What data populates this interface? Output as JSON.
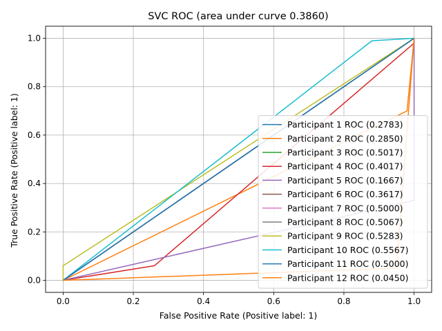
{
  "chart_data": {
    "type": "line",
    "title": "SVC ROC (area under curve 0.3860)",
    "xlabel": "False Positive Rate (Positive label: 1)",
    "ylabel": "True Positive Rate (Positive label: 1)",
    "xlim": [
      -0.05,
      1.05
    ],
    "ylim": [
      -0.05,
      1.05
    ],
    "xticks": [
      "0.0",
      "0.2",
      "0.4",
      "0.6",
      "0.8",
      "1.0"
    ],
    "yticks": [
      "0.0",
      "0.2",
      "0.4",
      "0.6",
      "0.8",
      "1.0"
    ],
    "grid": true,
    "legend_position": "lower-right",
    "series": [
      {
        "name": "Participant 1 ROC (0.2783)",
        "color": "#1f77b4",
        "x": [
          0,
          1,
          1
        ],
        "y": [
          0,
          1,
          1
        ]
      },
      {
        "name": "Participant 2 ROC (0.2850)",
        "color": "#ff7f0e",
        "x": [
          0,
          0.98,
          1,
          1
        ],
        "y": [
          0,
          0.7,
          1,
          1
        ]
      },
      {
        "name": "Participant 3 ROC (0.5017)",
        "color": "#2ca02c",
        "x": [
          0,
          1,
          1
        ],
        "y": [
          0,
          1,
          1
        ]
      },
      {
        "name": "Participant 4 ROC (0.4017)",
        "color": "#d62728",
        "x": [
          0,
          0.26,
          1,
          1
        ],
        "y": [
          0,
          0.06,
          0.98,
          1
        ]
      },
      {
        "name": "Participant 5 ROC (0.1667)",
        "color": "#9467bd",
        "x": [
          0,
          1,
          1
        ],
        "y": [
          0,
          0.33,
          1
        ]
      },
      {
        "name": "Participant 6 ROC (0.3617)",
        "color": "#8c564b",
        "x": [
          0,
          1,
          1
        ],
        "y": [
          0,
          1,
          1
        ]
      },
      {
        "name": "Participant 7 ROC (0.5000)",
        "color": "#e377c2",
        "x": [
          0,
          1,
          1
        ],
        "y": [
          0,
          1,
          1
        ]
      },
      {
        "name": "Participant 8 ROC (0.5067)",
        "color": "#7f7f7f",
        "x": [
          0,
          1,
          1
        ],
        "y": [
          0,
          1,
          1
        ]
      },
      {
        "name": "Participant 9 ROC (0.5283)",
        "color": "#bcbd22",
        "x": [
          0,
          0,
          1,
          1
        ],
        "y": [
          0,
          0.06,
          1,
          1
        ]
      },
      {
        "name": "Participant 10 ROC (0.5567)",
        "color": "#17becf",
        "x": [
          0,
          0.88,
          1,
          1
        ],
        "y": [
          0,
          0.99,
          1,
          1
        ]
      },
      {
        "name": "Participant 11 ROC (0.5000)",
        "color": "#1f77b4",
        "x": [
          0,
          1,
          1
        ],
        "y": [
          0,
          1,
          1
        ]
      },
      {
        "name": "Participant 12 ROC (0.0450)",
        "color": "#ff7f0e",
        "x": [
          0,
          0.95,
          1,
          1
        ],
        "y": [
          0,
          0.05,
          1,
          1
        ]
      }
    ]
  }
}
